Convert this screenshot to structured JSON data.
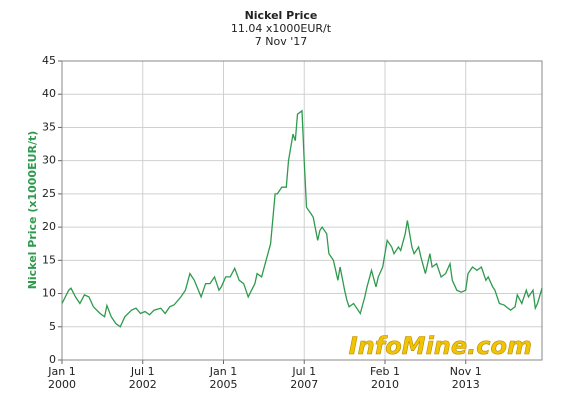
{
  "chart_data": {
    "type": "line",
    "title": "Nickel Price",
    "subtitle": "11.04 x1000EUR/t",
    "date_label": "7 Nov '17",
    "y_label": "Nickel Price (x1000EUR/t)",
    "watermark": "InfoMine.com",
    "color": "#2e9a4e",
    "grid": true,
    "xlim": [
      0,
      214
    ],
    "ylim": [
      0,
      45
    ],
    "yticks": [
      0,
      5,
      10,
      15,
      20,
      25,
      30,
      35,
      40,
      45
    ],
    "xticks": [
      {
        "value": 0,
        "label": [
          "Jan 1",
          "2000"
        ]
      },
      {
        "value": 36,
        "label": [
          "Jul 1",
          "2002"
        ]
      },
      {
        "value": 72,
        "label": [
          "Jan 1",
          "2005"
        ]
      },
      {
        "value": 108,
        "label": [
          "Jul 1",
          "2007"
        ]
      },
      {
        "value": 144,
        "label": [
          "Feb 1",
          "2010"
        ]
      },
      {
        "value": 180,
        "label": [
          "Nov 1",
          "2013"
        ]
      }
    ],
    "x": [
      0,
      3,
      4,
      6,
      8,
      10,
      12,
      14,
      17,
      19,
      20,
      22,
      24,
      26,
      28,
      31,
      33,
      35,
      37,
      39,
      41,
      44,
      46,
      48,
      50,
      53,
      55,
      57,
      59,
      62,
      64,
      66,
      68,
      70,
      71,
      73,
      75,
      77,
      79,
      81,
      83,
      86,
      87,
      89,
      91,
      93,
      95,
      96,
      98,
      100,
      101,
      103,
      104,
      105,
      107,
      108,
      109,
      110,
      111,
      112,
      114,
      115,
      116,
      118,
      119,
      121,
      123,
      124,
      126,
      127,
      128,
      130,
      131,
      133,
      135,
      136,
      138,
      140,
      141,
      143,
      145,
      147,
      148,
      150,
      151,
      153,
      154,
      156,
      157,
      159,
      160,
      162,
      164,
      165,
      167,
      169,
      171,
      173,
      174,
      176,
      178,
      180,
      181,
      183,
      185,
      187,
      189,
      190,
      192,
      193,
      195,
      197,
      198,
      200,
      202,
      203,
      205,
      207,
      208,
      210,
      211,
      212,
      214
    ],
    "values": [
      8.5,
      10.5,
      10.8,
      9.5,
      8.5,
      9.8,
      9.5,
      8,
      7,
      6.5,
      8.2,
      6.5,
      5.5,
      5.0,
      6.5,
      7.5,
      7.8,
      7.0,
      7.3,
      6.8,
      7.5,
      7.8,
      7.0,
      8.0,
      8.3,
      9.5,
      10.5,
      13.0,
      12.0,
      9.5,
      11.5,
      11.5,
      12.5,
      10.5,
      11.0,
      12.5,
      12.5,
      13.8,
      12.0,
      11.5,
      9.5,
      11.5,
      13.0,
      12.5,
      15.0,
      17.5,
      25.0,
      25.0,
      26.0,
      26.0,
      30.0,
      34.0,
      33.0,
      37.0,
      37.5,
      30,
      23,
      22.5,
      22,
      21.5,
      18,
      19.5,
      20,
      19,
      16,
      15,
      12,
      14,
      10.5,
      9,
      8,
      8.5,
      8,
      7,
      9.5,
      11,
      13.5,
      11,
      12.5,
      14,
      18,
      17,
      16,
      17,
      16.5,
      19,
      21,
      17,
      16,
      17,
      15.5,
      13,
      16,
      14,
      14.5,
      12.5,
      13,
      14.5,
      12,
      10.5,
      10.2,
      10.5,
      13,
      14,
      13.5,
      14,
      12,
      12.5,
      11,
      10.5,
      8.5,
      8.3,
      8.0,
      7.5,
      8.0,
      9.8,
      8.5,
      10.5,
      9.5,
      10.5,
      7.8,
      8.5,
      10.8
    ]
  }
}
